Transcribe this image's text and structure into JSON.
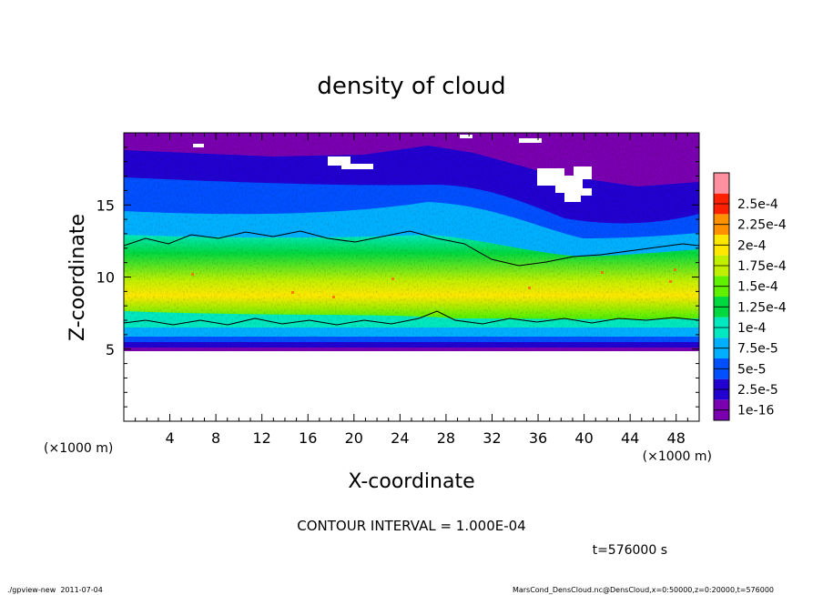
{
  "chart_data": {
    "type": "heatmap",
    "title": "density of cloud",
    "xlabel": "X-coordinate",
    "ylabel": "Z-coordinate",
    "x_unit": "(×1000 m)",
    "y_unit": "(×1000 m)",
    "xlim": [
      0,
      50
    ],
    "ylim": [
      0,
      20
    ],
    "x_ticks": [
      4,
      8,
      12,
      16,
      20,
      24,
      28,
      32,
      36,
      40,
      44,
      48
    ],
    "x_tick_labels": [
      "4",
      "8",
      "12",
      "16",
      "20",
      "24",
      "28",
      "32",
      "36",
      "40",
      "44",
      "48"
    ],
    "y_ticks": [
      5,
      10,
      15
    ],
    "y_tick_labels": [
      "5",
      "10",
      "15"
    ],
    "colorbar": {
      "labels": [
        "1e-16",
        "2.5e-5",
        "5e-5",
        "7.5e-5",
        "1e-4",
        "1.25e-4",
        "1.5e-4",
        "1.75e-4",
        "2e-4",
        "2.25e-4",
        "2.5e-4"
      ],
      "levels": [
        1e-16,
        2.5e-05,
        5e-05,
        7.5e-05,
        0.0001,
        0.000125,
        0.00015,
        0.000175,
        0.0002,
        0.000225,
        0.00025
      ],
      "colors": [
        "#7a00b0",
        "#2200d0",
        "#0050ff",
        "#00b0ff",
        "#00e8c0",
        "#00d840",
        "#60f000",
        "#c0f000",
        "#ffe800",
        "#ff9000",
        "#ff2000",
        "#ff90a0"
      ]
    },
    "features": {
      "data_bottom_z": 5,
      "high_density_band_z": [
        7,
        12
      ],
      "contour_level": 0.0001
    },
    "contour_interval_text": "CONTOUR INTERVAL = 1.000E-04",
    "time_text": "t=576000 s"
  },
  "footer": {
    "left": "./gpview-new  2011-07-04",
    "right": "MarsCond_DensCloud.nc@DensCloud,x=0:50000,z=0:20000,t=576000"
  }
}
